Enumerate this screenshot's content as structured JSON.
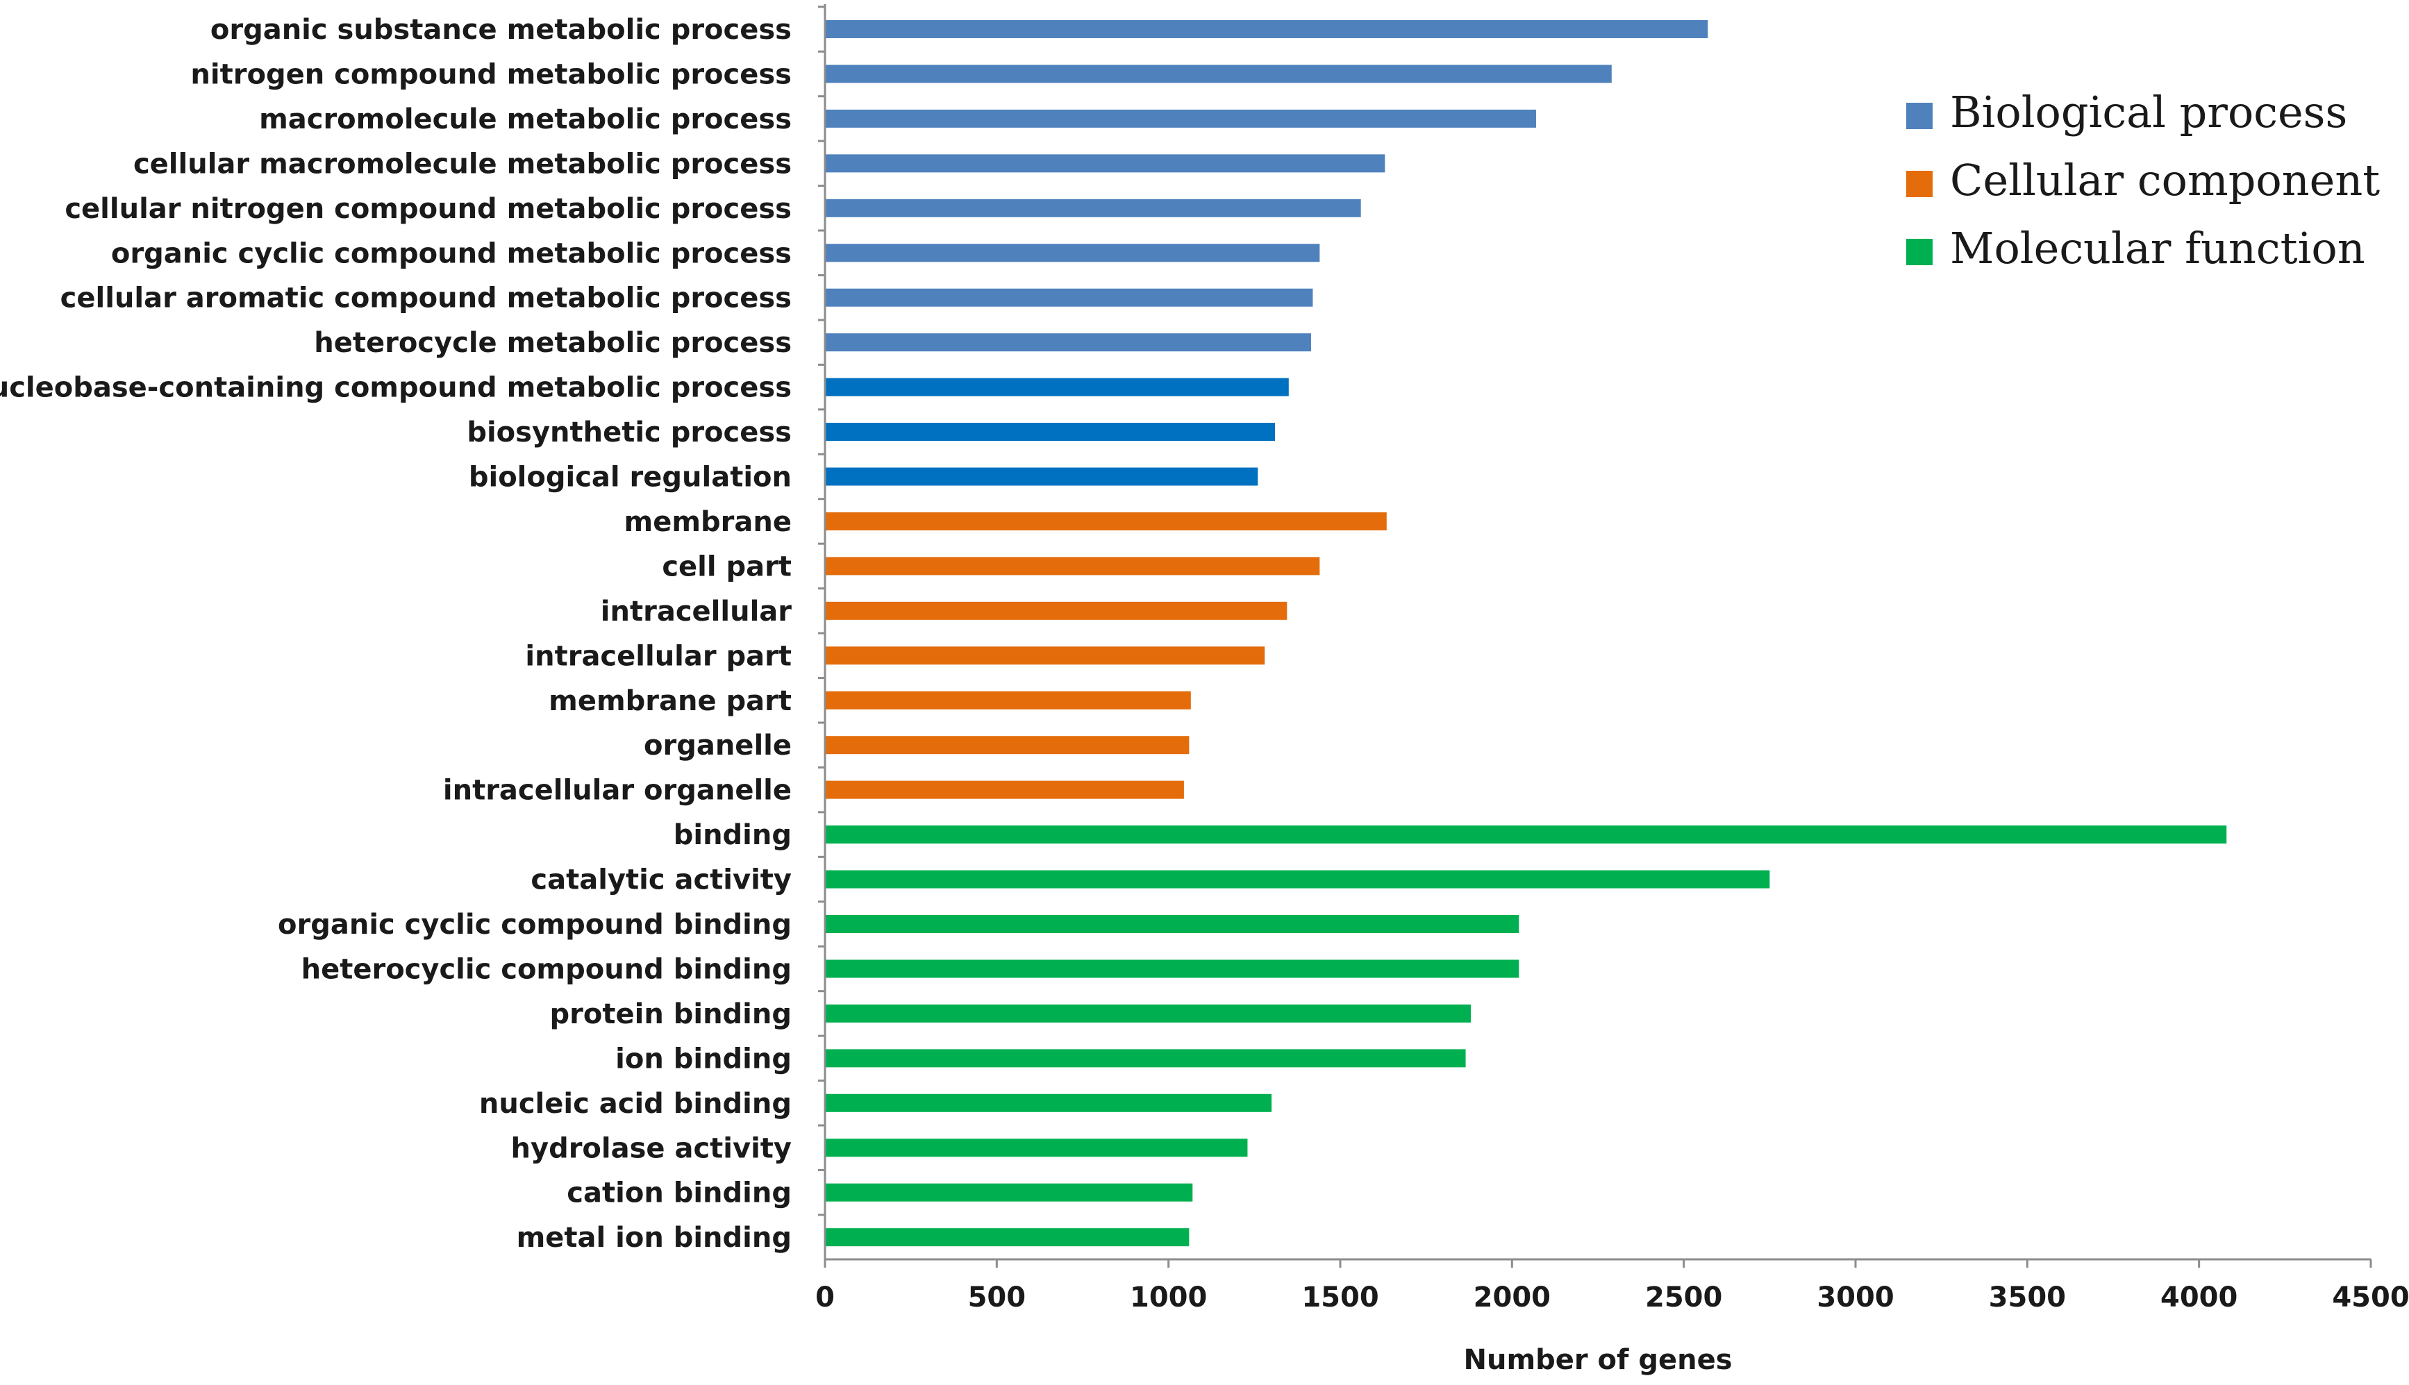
{
  "chart_data": {
    "type": "bar",
    "orientation": "horizontal",
    "xlabel": "Number of genes",
    "ylabel": "",
    "xlim": [
      0,
      4500
    ],
    "xticks": [
      0,
      500,
      1000,
      1500,
      2000,
      2500,
      3000,
      3500,
      4000,
      4500
    ],
    "grid": false,
    "legend_position": "top-right",
    "legend": [
      {
        "label": "Biological process",
        "color": "#4f81bd"
      },
      {
        "label": "Cellular component",
        "color": "#e46c0a"
      },
      {
        "label": "Molecular function",
        "color": "#00b050"
      }
    ],
    "bars": [
      {
        "label": "organic substance metabolic process",
        "value": 2570,
        "group": "Biological process",
        "color": "#4f81bd"
      },
      {
        "label": "nitrogen compound metabolic process",
        "value": 2290,
        "group": "Biological process",
        "color": "#4f81bd"
      },
      {
        "label": "macromolecule metabolic process",
        "value": 2070,
        "group": "Biological process",
        "color": "#4f81bd"
      },
      {
        "label": "cellular macromolecule metabolic process",
        "value": 1630,
        "group": "Biological process",
        "color": "#4f81bd"
      },
      {
        "label": "cellular nitrogen compound metabolic process",
        "value": 1560,
        "group": "Biological process",
        "color": "#4f81bd"
      },
      {
        "label": "organic cyclic compound metabolic process",
        "value": 1440,
        "group": "Biological process",
        "color": "#4f81bd"
      },
      {
        "label": "cellular aromatic compound metabolic process",
        "value": 1420,
        "group": "Biological process",
        "color": "#4f81bd"
      },
      {
        "label": "heterocycle metabolic process",
        "value": 1415,
        "group": "Biological process",
        "color": "#4f81bd"
      },
      {
        "label": "nucleobase-containing compound metabolic process",
        "value": 1350,
        "group": "Biological process",
        "color": "#0070c0"
      },
      {
        "label": "biosynthetic process",
        "value": 1310,
        "group": "Biological process",
        "color": "#0070c0"
      },
      {
        "label": "biological regulation",
        "value": 1260,
        "group": "Biological process",
        "color": "#0070c0"
      },
      {
        "label": "membrane",
        "value": 1635,
        "group": "Cellular component",
        "color": "#e46c0a"
      },
      {
        "label": "cell part",
        "value": 1440,
        "group": "Cellular component",
        "color": "#e46c0a"
      },
      {
        "label": "intracellular",
        "value": 1345,
        "group": "Cellular component",
        "color": "#e46c0a"
      },
      {
        "label": "intracellular part",
        "value": 1280,
        "group": "Cellular component",
        "color": "#e46c0a"
      },
      {
        "label": "membrane part",
        "value": 1065,
        "group": "Cellular component",
        "color": "#e46c0a"
      },
      {
        "label": "organelle",
        "value": 1060,
        "group": "Cellular component",
        "color": "#e46c0a"
      },
      {
        "label": "intracellular organelle",
        "value": 1045,
        "group": "Cellular component",
        "color": "#e46c0a"
      },
      {
        "label": "binding",
        "value": 4080,
        "group": "Molecular function",
        "color": "#00b050"
      },
      {
        "label": "catalytic activity",
        "value": 2750,
        "group": "Molecular function",
        "color": "#00b050"
      },
      {
        "label": "organic cyclic compound binding",
        "value": 2020,
        "group": "Molecular function",
        "color": "#00b050"
      },
      {
        "label": "heterocyclic compound binding",
        "value": 2020,
        "group": "Molecular function",
        "color": "#00b050"
      },
      {
        "label": "protein binding",
        "value": 1880,
        "group": "Molecular function",
        "color": "#00b050"
      },
      {
        "label": "ion binding",
        "value": 1865,
        "group": "Molecular function",
        "color": "#00b050"
      },
      {
        "label": "nucleic acid binding",
        "value": 1300,
        "group": "Molecular function",
        "color": "#00b050"
      },
      {
        "label": "hydrolase activity",
        "value": 1230,
        "group": "Molecular function",
        "color": "#00b050"
      },
      {
        "label": "cation binding",
        "value": 1070,
        "group": "Molecular function",
        "color": "#00b050"
      },
      {
        "label": "metal ion binding",
        "value": 1060,
        "group": "Molecular function",
        "color": "#00b050"
      }
    ]
  }
}
